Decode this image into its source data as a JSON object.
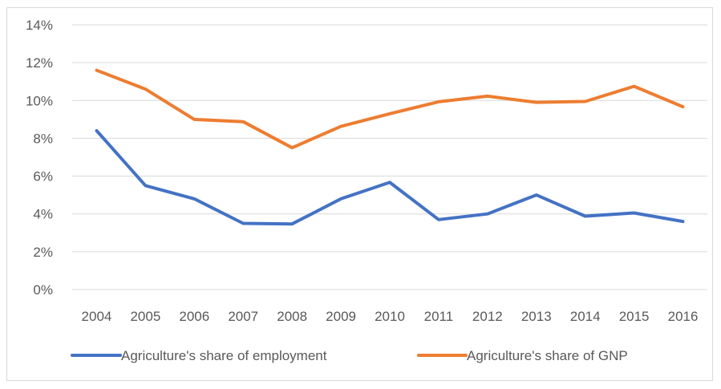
{
  "chart_data": {
    "type": "line",
    "title": "",
    "xlabel": "",
    "ylabel": "",
    "categories": [
      "2004",
      "2005",
      "2006",
      "2007",
      "2008",
      "2009",
      "2010",
      "2011",
      "2012",
      "2013",
      "2014",
      "2015",
      "2016"
    ],
    "ylim": [
      0,
      0.14
    ],
    "yticks": [
      0,
      0.02,
      0.04,
      0.06,
      0.08,
      0.1,
      0.12,
      0.14
    ],
    "ytick_labels": [
      "0%",
      "2%",
      "4%",
      "6%",
      "8%",
      "10%",
      "12%",
      "14%"
    ],
    "grid": "horizontal",
    "legend_position": "bottom",
    "series": [
      {
        "name": "Agriculture's share of employment",
        "color": "#4472C4",
        "values": [
          0.084,
          0.055,
          0.048,
          0.035,
          0.0347,
          0.048,
          0.0567,
          0.037,
          0.04,
          0.05,
          0.0388,
          0.0405,
          0.036
        ]
      },
      {
        "name": "Agriculture's share of GNP",
        "color": "#ED7D31",
        "values": [
          0.116,
          0.106,
          0.09,
          0.0888,
          0.075,
          0.0863,
          0.093,
          0.0993,
          0.1023,
          0.099,
          0.0995,
          0.1075,
          0.0967
        ]
      }
    ]
  }
}
